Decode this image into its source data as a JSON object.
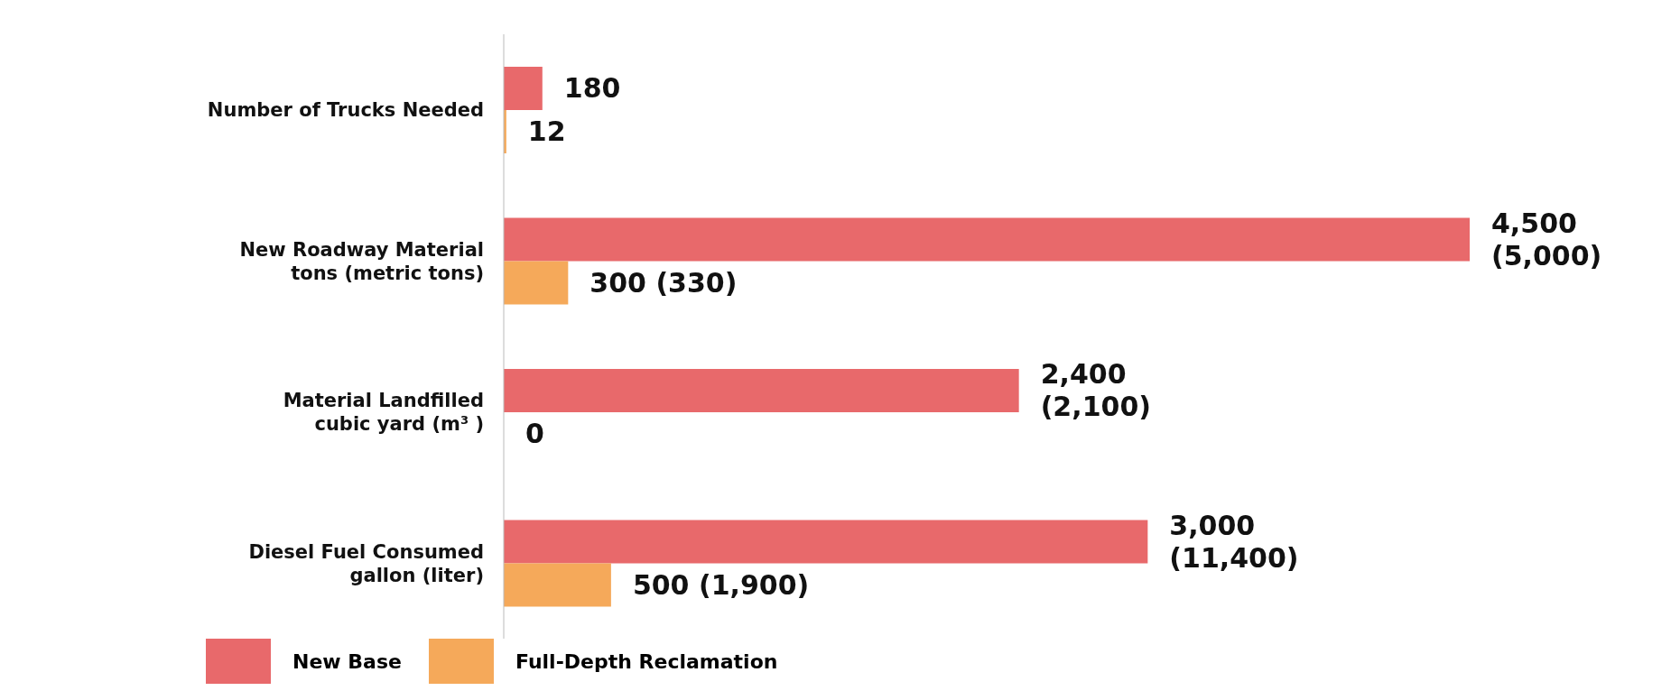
{
  "chart_data": {
    "type": "bar",
    "orientation": "horizontal",
    "xlim": [
      0,
      4500
    ],
    "tick_labels": "y",
    "categories": [
      "Number of Trucks Needed",
      "New Roadway Material tons (metric tons)",
      "Material Landfilled cubic yard (m³ )",
      "Diesel Fuel Consumed gallon (liter)"
    ],
    "series": [
      {
        "name": "New Base",
        "color": "#e8696b",
        "values": [
          180,
          4500,
          2400,
          3000
        ],
        "value_labels": [
          "180",
          "4,500 (5,000)",
          "2,400 (2,100)",
          "3,000 (11,400)"
        ]
      },
      {
        "name": "Full-Depth Reclamation",
        "color": "#f5a95a",
        "values": [
          12,
          300,
          0,
          500
        ],
        "value_labels": [
          "12",
          "300 (330)",
          "0",
          "500 (1,900)"
        ]
      }
    ],
    "legend": "bottom",
    "grid": false
  }
}
